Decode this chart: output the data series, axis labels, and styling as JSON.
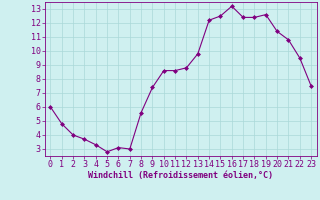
{
  "x": [
    0,
    1,
    2,
    3,
    4,
    5,
    6,
    7,
    8,
    9,
    10,
    11,
    12,
    13,
    14,
    15,
    16,
    17,
    18,
    19,
    20,
    21,
    22,
    23
  ],
  "y": [
    6.0,
    4.8,
    4.0,
    3.7,
    3.3,
    2.8,
    3.1,
    3.0,
    5.6,
    7.4,
    8.6,
    8.6,
    8.8,
    9.8,
    12.2,
    12.5,
    13.2,
    12.4,
    12.4,
    12.6,
    11.4,
    10.8,
    9.5,
    7.5
  ],
  "line_color": "#800080",
  "marker": "D",
  "marker_size": 2.0,
  "linewidth": 0.8,
  "bg_color": "#cff0f0",
  "grid_color": "#aad8d8",
  "xlabel": "Windchill (Refroidissement éolien,°C)",
  "xlabel_fontsize": 6.0,
  "tick_fontsize": 6.0,
  "xlim": [
    -0.5,
    23.5
  ],
  "ylim": [
    2.5,
    13.5
  ],
  "yticks": [
    3,
    4,
    5,
    6,
    7,
    8,
    9,
    10,
    11,
    12,
    13
  ],
  "xticks": [
    0,
    1,
    2,
    3,
    4,
    5,
    6,
    7,
    8,
    9,
    10,
    11,
    12,
    13,
    14,
    15,
    16,
    17,
    18,
    19,
    20,
    21,
    22,
    23
  ],
  "text_color": "#800080",
  "spine_color": "#800080"
}
